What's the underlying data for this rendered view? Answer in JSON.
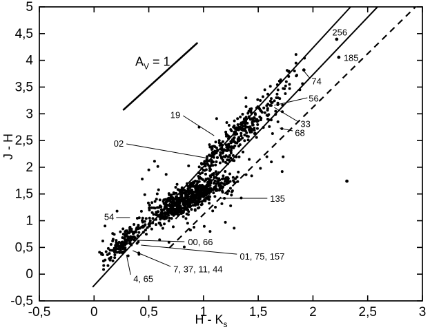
{
  "figure": {
    "background": "#ffffff",
    "ink_color": "#000000",
    "decimal_style": "comma"
  },
  "chart_data": {
    "type": "scatter",
    "title": "",
    "xlabel": "H - Ks",
    "xlabel_main": "H - K",
    "xlabel_sub": "s",
    "ylabel": "J - H",
    "xlim": [
      -0.5,
      3
    ],
    "ylim": [
      -0.5,
      5
    ],
    "grid": false,
    "x_ticks": [
      {
        "v": -0.5,
        "label": "-0,5"
      },
      {
        "v": 0,
        "label": "0"
      },
      {
        "v": 0.5,
        "label": "0,5"
      },
      {
        "v": 1,
        "label": "1"
      },
      {
        "v": 1.5,
        "label": "1,5"
      },
      {
        "v": 2,
        "label": "2"
      },
      {
        "v": 2.5,
        "label": "2,5"
      },
      {
        "v": 3,
        "label": "3"
      }
    ],
    "y_ticks": [
      {
        "v": 5,
        "label": "5"
      },
      {
        "v": 4.5,
        "label": "4,5"
      },
      {
        "v": 4,
        "label": "4"
      },
      {
        "v": 3.5,
        "label": "3,5"
      },
      {
        "v": 3,
        "label": "3"
      },
      {
        "v": 2.5,
        "label": "2,5"
      },
      {
        "v": 2,
        "label": "2"
      },
      {
        "v": 1.5,
        "label": "1,5"
      },
      {
        "v": 1,
        "label": "1"
      },
      {
        "v": 0.5,
        "label": "0,5"
      },
      {
        "v": 0,
        "label": "0"
      },
      {
        "v": -0.5,
        "label": "-0,5"
      }
    ],
    "reference_lines": [
      {
        "name": "reddening-band-left-line",
        "style": "solid",
        "x1": -0.013,
        "y1": -0.242,
        "x2": 2.344,
        "y2": 5.0
      },
      {
        "name": "reddening-band-right-line",
        "style": "solid",
        "x1": 0.745,
        "y1": 1.033,
        "x2": 2.59,
        "y2": 5.0
      },
      {
        "name": "ctts-locus-dashed-line",
        "style": "dashed",
        "x1": 0.688,
        "y1": 0.492,
        "x2": 2.937,
        "y2": 5.0
      }
    ],
    "extinction_vector": {
      "label": "AV = 1",
      "symbol": "A",
      "subscript": "V",
      "rest": " = 1",
      "x1": 0.265,
      "y1": 3.068,
      "x2": 0.946,
      "y2": 4.33,
      "label_x": 0.536,
      "label_y": 3.95
    },
    "annotations": [
      {
        "text": "256",
        "x": 2.245,
        "y": 4.523,
        "anchor": "middle",
        "line": null
      },
      {
        "text": "185",
        "x": 2.28,
        "y": 4.047,
        "anchor": "start",
        "line": null
      },
      {
        "text": "74",
        "x": 1.987,
        "y": 3.609,
        "anchor": "start",
        "line": {
          "x1": 1.974,
          "y1": 3.66,
          "x2": 1.917,
          "y2": 3.8
        }
      },
      {
        "text": "56",
        "x": 1.961,
        "y": 3.287,
        "anchor": "start",
        "line": {
          "x1": 1.949,
          "y1": 3.3,
          "x2": 1.646,
          "y2": 3.158
        }
      },
      {
        "text": "33",
        "x": 1.886,
        "y": 2.81,
        "anchor": "start",
        "line": {
          "x1": 1.867,
          "y1": 2.849,
          "x2": 1.646,
          "y2": 3.12
        }
      },
      {
        "text": "68",
        "x": 1.835,
        "y": 2.643,
        "anchor": "start",
        "line": {
          "x1": 1.816,
          "y1": 2.68,
          "x2": 1.697,
          "y2": 2.733
        }
      },
      {
        "text": "19",
        "x": 0.788,
        "y": 2.977,
        "anchor": "end",
        "line": {
          "x1": 0.813,
          "y1": 2.965,
          "x2": 1.097,
          "y2": 2.59
        }
      },
      {
        "text": "02",
        "x": 0.271,
        "y": 2.44,
        "anchor": "end",
        "line": {
          "x1": 0.296,
          "y1": 2.437,
          "x2": 1.047,
          "y2": 2.166
        }
      },
      {
        "text": "135",
        "x": 1.608,
        "y": 1.41,
        "anchor": "start",
        "line": {
          "x1": 1.583,
          "y1": 1.42,
          "x2": 1.141,
          "y2": 1.42
        }
      },
      {
        "text": "54",
        "x": 0.183,
        "y": 1.07,
        "anchor": "end",
        "line": {
          "x1": 0.202,
          "y1": 1.058,
          "x2": 0.328,
          "y2": 1.058
        }
      },
      {
        "text": "00, 66",
        "x": 0.858,
        "y": 0.6,
        "anchor": "start",
        "line": {
          "x1": 0.826,
          "y1": 0.608,
          "x2": 0.397,
          "y2": 0.633
        }
      },
      {
        "text": "01, 75, 157",
        "x": 1.331,
        "y": 0.33,
        "anchor": "start",
        "line": {
          "x1": 1.305,
          "y1": 0.375,
          "x2": 0.429,
          "y2": 0.543
        }
      },
      {
        "text": "7, 37, 11, 44",
        "x": 0.725,
        "y": 0.09,
        "anchor": "start",
        "line": {
          "x1": 0.7,
          "y1": 0.143,
          "x2": 0.353,
          "y2": 0.44
        }
      },
      {
        "text": "4, 65",
        "x": 0.359,
        "y": -0.09,
        "anchor": "start",
        "line": {
          "x1": 0.334,
          "y1": -0.011,
          "x2": 0.296,
          "y2": 0.363
        }
      }
    ],
    "labeled_points": [
      {
        "id": "256",
        "x": 2.217,
        "y": 4.395
      },
      {
        "id": "185",
        "x": 2.236,
        "y": 4.057
      },
      {
        "id": "74",
        "x": 1.917,
        "y": 3.82
      },
      {
        "id": "isolated-right",
        "x": 2.31,
        "y": 1.74
      }
    ],
    "outlier_points": [
      [
        0.08,
        0.62
      ],
      [
        0.13,
        0.48
      ],
      [
        0.05,
        0.41
      ],
      [
        0.17,
        0.76
      ],
      [
        0.1,
        0.9
      ],
      [
        0.21,
        1.18
      ],
      [
        1.28,
        0.86
      ],
      [
        1.2,
        0.97
      ],
      [
        1.06,
        0.8
      ],
      [
        1.44,
        1.84
      ],
      [
        1.52,
        1.98
      ],
      [
        1.62,
        2.1
      ],
      [
        0.5,
        1.95
      ],
      [
        0.44,
        1.78
      ],
      [
        1.12,
        2.91
      ],
      [
        1.56,
        3.45
      ],
      [
        1.68,
        3.3
      ],
      [
        1.75,
        3.52
      ],
      [
        1.88,
        3.45
      ],
      [
        0.96,
        2.75
      ]
    ],
    "point_cloud": {
      "description": "Dense stellar scatter estimated as density model; exact per-star values not resolvable in source image.",
      "seed": 42,
      "marker_radius_px": 2,
      "segments": [
        {
          "name": "dense-core",
          "n": 600,
          "x_center": 0.85,
          "x_sd": 0.19,
          "x_min": 0.4,
          "x_max": 1.32,
          "slope": 0.95,
          "y_at_center": 1.4,
          "y_sd": 0.12
        },
        {
          "name": "upper-band",
          "n": 300,
          "x_center": 1.28,
          "x_sd": 0.22,
          "x_min": 0.95,
          "x_max": 1.85,
          "slope": 1.95,
          "y_at_center": 2.546,
          "y_sd": 0.16
        },
        {
          "name": "lower-tail",
          "n": 150,
          "x_center": 0.27,
          "x_sd": 0.1,
          "x_min": 0.06,
          "x_max": 0.48,
          "slope": 1.7,
          "y_at_center": 0.6,
          "y_sd": 0.11
        },
        {
          "name": "halo",
          "n": 110,
          "x_center": 0.95,
          "x_sd": 0.35,
          "x_min": 0.3,
          "x_max": 1.75,
          "slope": 1.3,
          "y_at_center": 1.55,
          "y_sd": 0.38
        },
        {
          "name": "top-sparse",
          "n": 22,
          "x_center": 1.78,
          "x_sd": 0.14,
          "x_min": 1.5,
          "x_max": 2.05,
          "slope": 2.0,
          "y_at_center": 3.56,
          "y_sd": 0.18
        }
      ]
    }
  }
}
